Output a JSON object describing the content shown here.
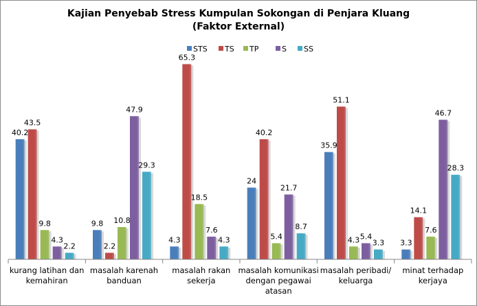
{
  "chart_data": {
    "type": "bar",
    "title": "Kajian Penyebab Stress Kumpulan Sokongan di Penjara Kluang",
    "subtitle": "(Faktor External)",
    "categories": [
      [
        "kurang latihan  dan",
        "kemahiran"
      ],
      [
        "masalah  karenah",
        "banduan"
      ],
      [
        "masalah  rakan",
        "sekerja"
      ],
      [
        "masalah  komunikasi",
        "dengan pegawai",
        "atasan"
      ],
      [
        "masalah  peribadi/",
        "keluarga"
      ],
      [
        "minat  terhadap",
        "kerjaya"
      ]
    ],
    "series": [
      {
        "name": "STS",
        "color": "#4a7ebb",
        "values": [
          40.2,
          9.8,
          4.3,
          24,
          35.9,
          3.3
        ]
      },
      {
        "name": "TS",
        "color": "#be4b48",
        "values": [
          43.5,
          2.2,
          65.3,
          40.2,
          51.1,
          14.1
        ]
      },
      {
        "name": "TP",
        "color": "#98b954",
        "values": [
          9.8,
          10.8,
          18.5,
          5.4,
          4.3,
          7.6
        ]
      },
      {
        "name": "S",
        "color": "#7d5fa0",
        "values": [
          4.3,
          47.9,
          7.6,
          21.7,
          5.4,
          46.7
        ]
      },
      {
        "name": "SS",
        "color": "#46aac5",
        "values": [
          2.2,
          29.3,
          4.3,
          8.7,
          3.3,
          28.3
        ]
      }
    ],
    "ylim": [
      0,
      70
    ],
    "grid": false,
    "legend_position": "top"
  }
}
